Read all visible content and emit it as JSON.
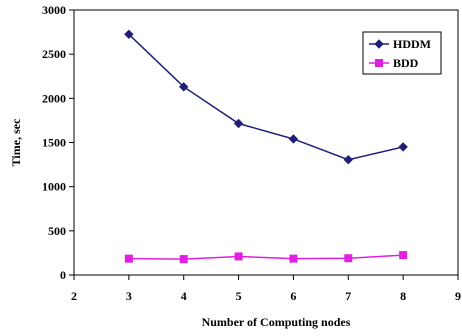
{
  "chart_data": {
    "type": "line",
    "title": "",
    "xlabel": "Number of Computing nodes",
    "ylabel": "Time, sec",
    "xlim": [
      2,
      9
    ],
    "ylim": [
      0,
      3000
    ],
    "x_ticks": [
      2,
      3,
      4,
      5,
      6,
      7,
      8,
      9
    ],
    "y_ticks": [
      0,
      500,
      1000,
      1500,
      2000,
      2500,
      3000
    ],
    "grid": false,
    "legend_position": "top-right",
    "series": [
      {
        "name": "HDDM",
        "color": "#1f1f7a",
        "marker": "diamond",
        "x": [
          3,
          4,
          5,
          6,
          7,
          8
        ],
        "y": [
          2725,
          2130,
          1715,
          1540,
          1305,
          1450
        ]
      },
      {
        "name": "BDD",
        "color": "#e020e0",
        "marker": "square",
        "x": [
          3,
          4,
          5,
          6,
          7,
          8
        ],
        "y": [
          185,
          180,
          210,
          185,
          190,
          225
        ]
      }
    ]
  }
}
